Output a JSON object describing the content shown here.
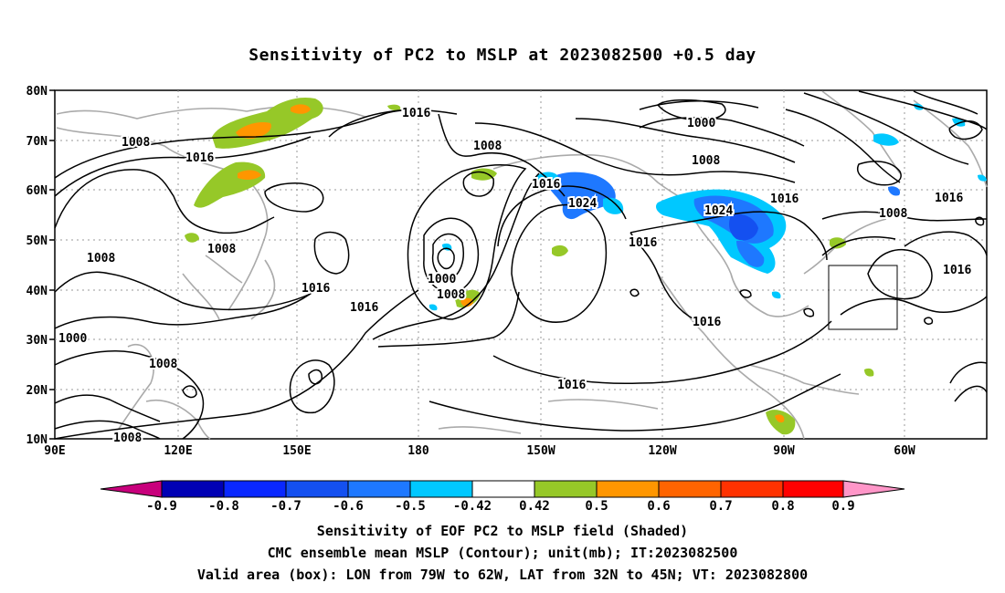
{
  "title": "Sensitivity of PC2 to MSLP at 2023082500 +0.5 day",
  "lat_labels": [
    "80N",
    "70N",
    "60N",
    "50N",
    "40N",
    "30N",
    "20N",
    "10N"
  ],
  "lon_labels": [
    "90E",
    "120E",
    "150E",
    "180",
    "150W",
    "120W",
    "90W",
    "60W"
  ],
  "contour_labels": [
    "1016",
    "1000",
    "1008",
    "1008",
    "1016",
    "1008",
    "1016",
    "1024",
    "1024",
    "1016",
    "1016",
    "1008",
    "1016",
    "1008",
    "1008",
    "1000",
    "1008",
    "1016",
    "1016",
    "1000",
    "1008",
    "1008",
    "1016",
    "1016",
    "1016"
  ],
  "colorbar": {
    "labels": [
      "-0.9",
      "-0.8",
      "-0.7",
      "-0.6",
      "-0.5",
      "-0.42",
      "0.42",
      "0.5",
      "0.6",
      "0.7",
      "0.8",
      "0.9"
    ],
    "colors": [
      "#c8007c",
      "#0000b4",
      "#0a28ff",
      "#1450f0",
      "#1e78ff",
      "#00c8ff",
      "#ffffff",
      "#96c828",
      "#ff9600",
      "#ff6400",
      "#ff3200",
      "#ff0000",
      "#ff96c8"
    ]
  },
  "captions": {
    "line1": "Sensitivity of EOF PC2 to MSLP field (Shaded)",
    "line2": "CMC ensemble mean MSLP (Contour); unit(mb); IT:2023082500",
    "line3": "Valid area (box): LON from 79W to 62W, LAT from 32N to 45N; VT: 2023082800"
  }
}
